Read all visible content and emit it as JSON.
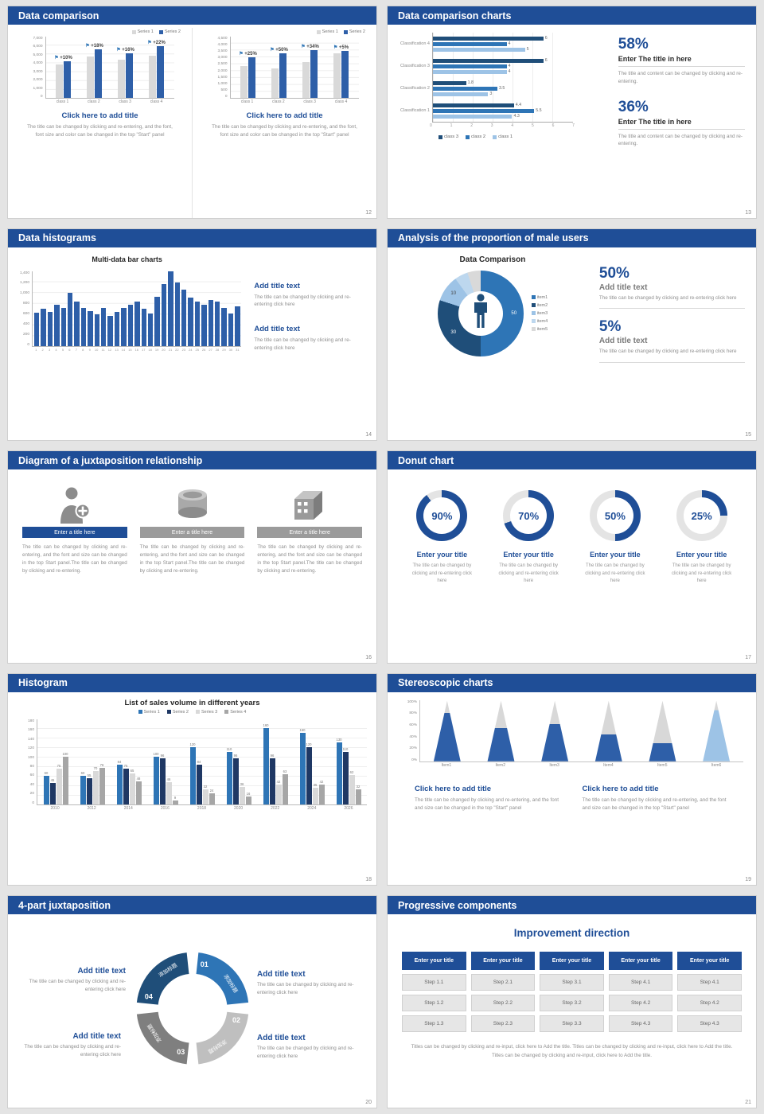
{
  "theme": {
    "header_bg": "#1f4e97",
    "accent": "#1f4e97",
    "bar_blue": "#2e5fa8",
    "bar_gray": "#d9d9d9"
  },
  "s12": {
    "title": "Data comparison",
    "page": "12",
    "charts": [
      {
        "y_ticks": [
          "7,000",
          "6,000",
          "5,000",
          "4,000",
          "3,000",
          "2,000",
          "1,000",
          "0"
        ],
        "y_max": 7000,
        "categories": [
          "class 1",
          "class 2",
          "class 3",
          "class 4"
        ],
        "growth_labels": [
          "+10%",
          "+18%",
          "+16%",
          "+22%"
        ],
        "series": [
          {
            "name": "Series 1",
            "color": "#d9d9d9",
            "values": [
              4200,
              5200,
              4800,
              5300
            ]
          },
          {
            "name": "Series 2",
            "color": "#2e5fa8",
            "values": [
              4600,
              6100,
              5600,
              6500
            ]
          }
        ],
        "caption_title": "Click here to add title",
        "caption_body": "The title can be changed by clicking and re-entering, and the font, font size and color can be changed in the top \"Start\" panel"
      },
      {
        "y_ticks": [
          "4,500",
          "4,000",
          "3,500",
          "3,000",
          "2,500",
          "2,000",
          "1,500",
          "1,000",
          "500",
          "0"
        ],
        "y_max": 4500,
        "categories": [
          "class 1",
          "class 2",
          "class 3",
          "class 4"
        ],
        "growth_labels": [
          "+25%",
          "+50%",
          "+34%",
          "+5%"
        ],
        "series": [
          {
            "name": "Series 1",
            "color": "#d9d9d9",
            "values": [
              2600,
              2400,
              2900,
              3600
            ]
          },
          {
            "name": "Series 2",
            "color": "#2e5fa8",
            "values": [
              3250,
              3600,
              3850,
              3800
            ]
          }
        ],
        "caption_title": "Click here to add title",
        "caption_body": "The title can be changed by clicking and re-entering, and the font, font size and color can be changed in the top \"Start\" panel"
      }
    ]
  },
  "s13": {
    "title": "Data comparison charts",
    "page": "13",
    "chart": {
      "x_ticks": [
        "0",
        "1",
        "2",
        "3",
        "4",
        "5",
        "6",
        "7"
      ],
      "x_max": 7,
      "legend": [
        {
          "label": "class 3",
          "color": "#1f4e79"
        },
        {
          "label": "class 2",
          "color": "#2e75b6"
        },
        {
          "label": "class 1",
          "color": "#9dc3e6"
        }
      ],
      "rows": [
        {
          "category": "Classification 4",
          "values": [
            6,
            4,
            5
          ]
        },
        {
          "category": "Classification 3",
          "values": [
            6,
            4,
            4
          ]
        },
        {
          "category": "Classification 2",
          "values": [
            1.8,
            3.5,
            3
          ]
        },
        {
          "category": "Classification 1",
          "values": [
            4.4,
            5.5,
            4.3
          ]
        }
      ]
    },
    "stats": [
      {
        "value": "58%",
        "title": "Enter The title in here",
        "body": "The title and content can be changed by clicking and re-entering."
      },
      {
        "value": "36%",
        "title": "Enter The title in here",
        "body": "The title and content can be changed by clicking and re-entering."
      }
    ]
  },
  "s14": {
    "title": "Data histograms",
    "page": "14",
    "chart_title": "Multi-data bar charts",
    "y_ticks": [
      "1,400",
      "1,200",
      "1,000",
      "800",
      "600",
      "400",
      "200",
      "0"
    ],
    "y_max": 1400,
    "x_labels": [
      "1",
      "2",
      "3",
      "4",
      "5",
      "6",
      "7",
      "8",
      "9",
      "10",
      "11",
      "12",
      "13",
      "14",
      "15",
      "16",
      "17",
      "18",
      "19",
      "20",
      "21",
      "22",
      "23",
      "24",
      "25",
      "26",
      "27",
      "28",
      "29",
      "30",
      "31"
    ],
    "values": [
      620,
      690,
      640,
      760,
      700,
      990,
      820,
      700,
      650,
      590,
      700,
      560,
      640,
      700,
      770,
      820,
      690,
      600,
      910,
      1150,
      1390,
      1180,
      1050,
      900,
      820,
      760,
      860,
      820,
      700,
      600,
      740
    ],
    "blocks": [
      {
        "title": "Add title text",
        "body": "The title can be changed by clicking and re-entering click here"
      },
      {
        "title": "Add title text",
        "body": "The title can be changed by clicking and re-entering click here"
      }
    ]
  },
  "s15": {
    "title": "Analysis of the proportion of male users",
    "page": "15",
    "chart_title": "Data Comparison",
    "donut": [
      {
        "label": "item1",
        "value": 50,
        "color": "#2e75b6",
        "show_label": true,
        "label_color": "#ffffff"
      },
      {
        "label": "item2",
        "value": 30,
        "color": "#1f4e79",
        "show_label": true,
        "label_color": "#ffffff"
      },
      {
        "label": "item3",
        "value": 10,
        "color": "#9dc3e6",
        "show_label": true,
        "label_color": "#444444"
      },
      {
        "label": "item4",
        "value": 5,
        "color": "#bdd7ee",
        "show_label": false,
        "label_color": "#444444"
      },
      {
        "label": "item5",
        "value": 5,
        "color": "#d9d9d9",
        "show_label": false,
        "label_color": "#444444"
      }
    ],
    "stats": [
      {
        "value": "50%",
        "title": "Add title text",
        "body": "The title can be changed by clicking and re-entering click here"
      },
      {
        "value": "5%",
        "title": "Add title text",
        "body": "The title can be changed by clicking and re-entering click here"
      }
    ]
  },
  "s16": {
    "title": "Diagram of a juxtaposition relationship",
    "page": "16",
    "columns": [
      {
        "icon": "nurse-icon",
        "bar_color": "#1f4e97",
        "title": "Enter a title here",
        "body": "The title can be changed by clicking and re-entering, and the font and size can be changed in the top Start panel.The title can be changed by clicking and re-entering."
      },
      {
        "icon": "database-icon",
        "bar_color": "#9b9b9b",
        "title": "Enter a title here",
        "body": "The title can be changed by clicking and re-entering, and the font and size can be changed in the top Start panel.The title can be changed by clicking and re-entering."
      },
      {
        "icon": "building-icon",
        "bar_color": "#9b9b9b",
        "title": "Enter a title here",
        "body": "The title can be changed by clicking and re-entering, and the font and size can be changed in the top Start panel.The title can be changed by clicking and re-entering."
      }
    ]
  },
  "s17": {
    "title": "Donut chart",
    "page": "17",
    "donuts": [
      {
        "pct": 90,
        "display": "90%",
        "title": "Enter your title",
        "body": "The title can be changed by clicking and re-entering click here"
      },
      {
        "pct": 70,
        "display": "70%",
        "title": "Enter your title",
        "body": "The title can be changed by clicking and re-entering click here"
      },
      {
        "pct": 50,
        "display": "50%",
        "title": "Enter your title",
        "body": "The title can be changed by clicking and re-entering click here"
      },
      {
        "pct": 25,
        "display": "25%",
        "title": "Enter your title",
        "body": "The title can be changed by clicking and re-entering click here"
      }
    ]
  },
  "s18": {
    "title": "Histogram",
    "page": "18",
    "chart_title": "List of sales volume in different years",
    "y_max": 180,
    "y_ticks": [
      "180",
      "160",
      "140",
      "120",
      "100",
      "80",
      "60",
      "40",
      "20",
      "0"
    ],
    "categories": [
      "2010",
      "2012",
      "2014",
      "2016",
      "2018",
      "2020",
      "2022",
      "2024",
      "2026"
    ],
    "series": [
      {
        "name": "Series 1",
        "color": "#2e75b6",
        "values": [
          60,
          60,
          84,
          100,
          120,
          110,
          160,
          150,
          130
        ]
      },
      {
        "name": "Series 2",
        "color": "#1f3864",
        "values": [
          45,
          55,
          75,
          96,
          84,
          96,
          96,
          120,
          110
        ]
      },
      {
        "name": "Series 3",
        "color": "#d9d9d9",
        "values": [
          75,
          70,
          65,
          46,
          32,
          36,
          42,
          35,
          62
        ]
      },
      {
        "name": "Series 4",
        "color": "#a6a6a6",
        "values": [
          100,
          76,
          48,
          9,
          24,
          16,
          63,
          42,
          32
        ]
      }
    ]
  },
  "s19": {
    "title": "Stereoscopic charts",
    "page": "19",
    "y_ticks": [
      "100%",
      "80%",
      "60%",
      "40%",
      "20%",
      "0%"
    ],
    "items": [
      {
        "label": "Item1",
        "fill": 80,
        "color": "#2e5fa8"
      },
      {
        "label": "Item2",
        "fill": 55,
        "color": "#2e5fa8"
      },
      {
        "label": "Item3",
        "fill": 62,
        "color": "#2e5fa8"
      },
      {
        "label": "Item4",
        "fill": 45,
        "color": "#2e5fa8"
      },
      {
        "label": "Item5",
        "fill": 30,
        "color": "#2e5fa8"
      },
      {
        "label": "Item6",
        "fill": 85,
        "color": "#9dc3e6"
      }
    ],
    "captions": [
      {
        "title": "Click here to add title",
        "body": "The title can be changed by clicking and re-entering, and the font and size can be changed in the top \"Start\" panel"
      },
      {
        "title": "Click here to add title",
        "body": "The title can be changed by clicking and re-entering, and the font and size can be changed in the top \"Start\" panel"
      }
    ]
  },
  "s20": {
    "title": "4-part juxtaposition",
    "page": "20",
    "segments": [
      {
        "num": "01",
        "label": "添加标题",
        "color": "#2e75b6"
      },
      {
        "num": "02",
        "label": "添加标题",
        "color": "#bfbfbf"
      },
      {
        "num": "03",
        "label": "添加标题",
        "color": "#7f7f7f"
      },
      {
        "num": "04",
        "label": "添加标题",
        "color": "#1f4e79"
      }
    ],
    "blocks": [
      {
        "pos": "tl",
        "title": "Add title text",
        "body": "The title can be changed by clicking and re-entering click here"
      },
      {
        "pos": "tr",
        "title": "Add title text",
        "body": "The title can be changed by clicking and re-entering click here"
      },
      {
        "pos": "bl",
        "title": "Add title text",
        "body": "The title can be changed by clicking and re-entering click here"
      },
      {
        "pos": "br",
        "title": "Add title text",
        "body": "The title can be changed by clicking and re-entering click here"
      }
    ]
  },
  "s21": {
    "title": "Progressive components",
    "page": "21",
    "heading": "Improvement direction",
    "columns": [
      {
        "header": "Enter your title",
        "steps": [
          "Step 1.1",
          "Step 1.2",
          "Step 1.3"
        ]
      },
      {
        "header": "Enter your title",
        "steps": [
          "Step 2.1",
          "Step 2.2",
          "Step 2.3"
        ]
      },
      {
        "header": "Enter your title",
        "steps": [
          "Step 3.1",
          "Step 3.2",
          "Step 3.3"
        ]
      },
      {
        "header": "Enter your title",
        "steps": [
          "Step 4.1",
          "Step 4.2",
          "Step 4.3"
        ]
      },
      {
        "header": "Enter your title",
        "steps": [
          "Step 4.1",
          "Step 4.2",
          "Step 4.3"
        ]
      }
    ],
    "footer": "Titles can be changed by clicking and re-input, click here to Add the title. Titles can be changed by clicking and re-input, click here to Add the title. Titles can be changed by clicking and re-input, click here to Add the title."
  }
}
